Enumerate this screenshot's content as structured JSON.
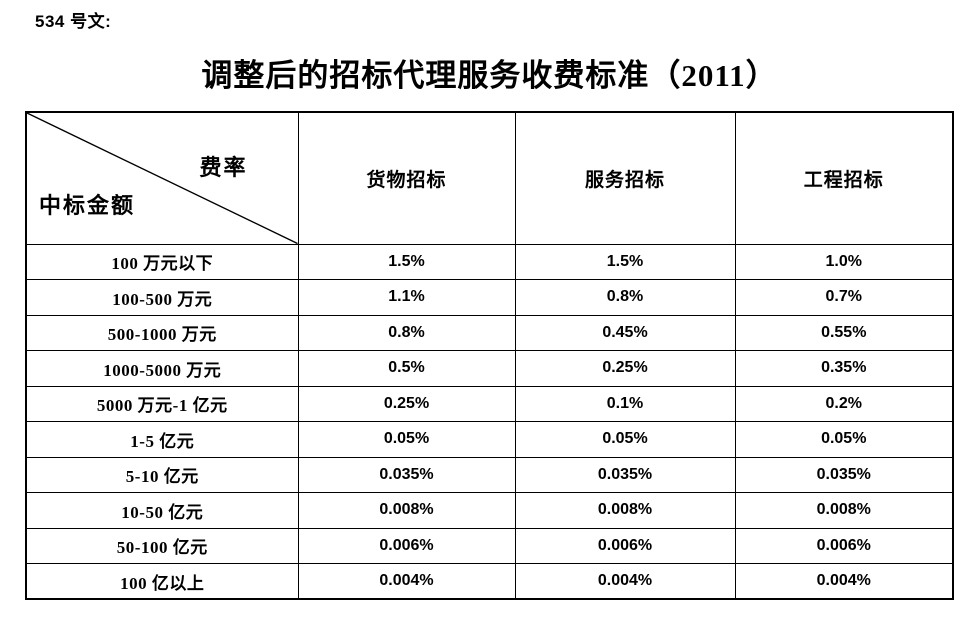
{
  "page": {
    "doc_label": "534 号文:",
    "title": "调整后的招标代理服务收费标准（2011）"
  },
  "table": {
    "corner": {
      "top_right": "费率",
      "bottom_left": "中标金额"
    },
    "columns": [
      "货物招标",
      "服务招标",
      "工程招标"
    ],
    "rows": [
      {
        "label": "100 万元以下",
        "values": [
          "1.5%",
          "1.5%",
          "1.0%"
        ]
      },
      {
        "label": "100-500 万元",
        "values": [
          "1.1%",
          "0.8%",
          "0.7%"
        ]
      },
      {
        "label": "500-1000 万元",
        "values": [
          "0.8%",
          "0.45%",
          "0.55%"
        ]
      },
      {
        "label": "1000-5000 万元",
        "values": [
          "0.5%",
          "0.25%",
          "0.35%"
        ]
      },
      {
        "label": "5000 万元-1 亿元",
        "values": [
          "0.25%",
          "0.1%",
          "0.2%"
        ]
      },
      {
        "label": "1-5 亿元",
        "values": [
          "0.05%",
          "0.05%",
          "0.05%"
        ]
      },
      {
        "label": "5-10 亿元",
        "values": [
          "0.035%",
          "0.035%",
          "0.035%"
        ]
      },
      {
        "label": "10-50 亿元",
        "values": [
          "0.008%",
          "0.008%",
          "0.008%"
        ]
      },
      {
        "label": "50-100 亿元",
        "values": [
          "0.006%",
          "0.006%",
          "0.006%"
        ]
      },
      {
        "label": "100 亿以上",
        "values": [
          "0.004%",
          "0.004%",
          "0.004%"
        ]
      }
    ],
    "border_color": "#000000"
  }
}
